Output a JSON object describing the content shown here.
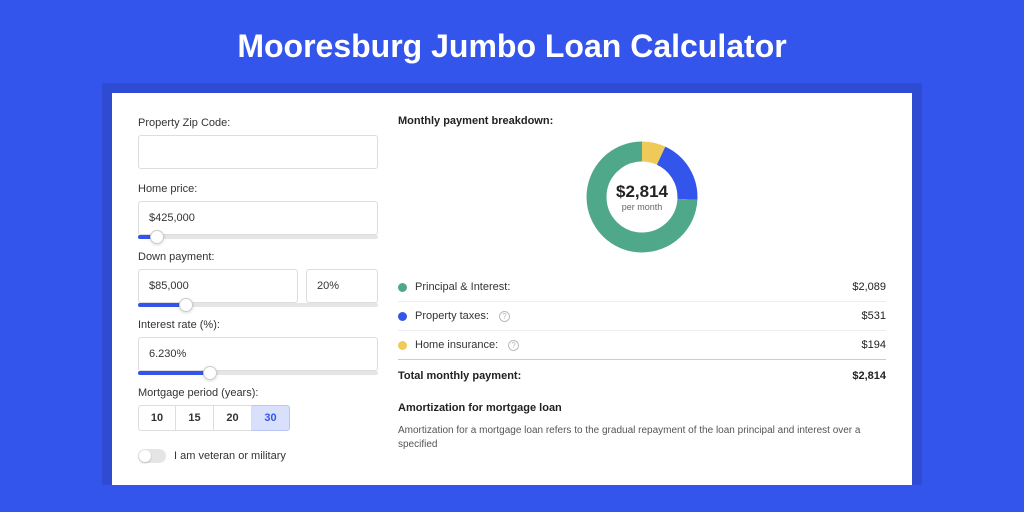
{
  "colors": {
    "page_bg": "#3455eb",
    "card_wrap_bg": "#2e4bd1",
    "principal": "#4fa88a",
    "taxes": "#3455eb",
    "insurance": "#f0ca58"
  },
  "title": "Mooresburg Jumbo Loan Calculator",
  "form": {
    "zip": {
      "label": "Property Zip Code:",
      "value": ""
    },
    "price": {
      "label": "Home price:",
      "value": "$425,000",
      "slider_pct": 8
    },
    "down": {
      "label": "Down payment:",
      "value": "$85,000",
      "pct": "20%",
      "slider_pct": 20
    },
    "rate": {
      "label": "Interest rate (%):",
      "value": "6.230%",
      "slider_pct": 30
    },
    "period": {
      "label": "Mortgage period (years):",
      "options": [
        "10",
        "15",
        "20",
        "30"
      ],
      "selected": "30"
    },
    "veteran": {
      "label": "I am veteran or military",
      "on": false
    }
  },
  "breakdown": {
    "title": "Monthly payment breakdown:",
    "center_amount": "$2,814",
    "center_sub": "per month",
    "items": [
      {
        "label": "Principal & Interest:",
        "value": "$2,089",
        "color": "#4fa88a",
        "frac": 0.742,
        "info": false
      },
      {
        "label": "Property taxes:",
        "value": "$531",
        "color": "#3455eb",
        "frac": 0.189,
        "info": true
      },
      {
        "label": "Home insurance:",
        "value": "$194",
        "color": "#f0ca58",
        "frac": 0.069,
        "info": true
      }
    ],
    "total_label": "Total monthly payment:",
    "total_value": "$2,814"
  },
  "amort": {
    "title": "Amortization for mortgage loan",
    "text": "Amortization for a mortgage loan refers to the gradual repayment of the loan principal and interest over a specified"
  }
}
